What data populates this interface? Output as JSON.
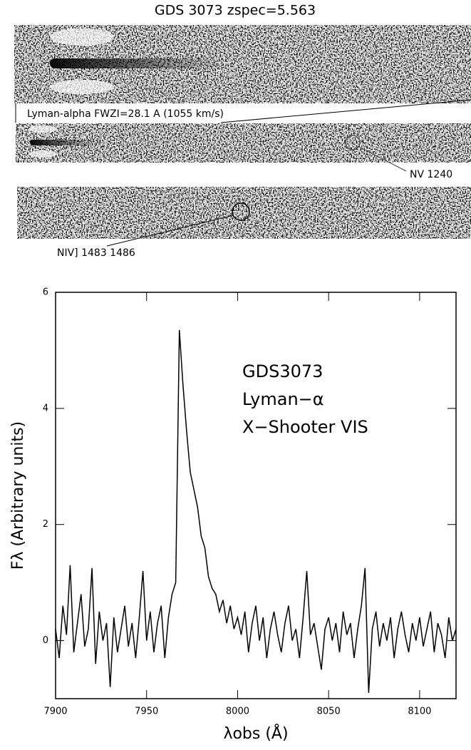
{
  "figure": {
    "title": "GDS 3073 zspec=5.563",
    "lya_label": "Lyman-alpha FWZI=28.1 A (1055 km/s)",
    "nv_label": "NV 1240",
    "niv_label": "NIV] 1483  1486"
  },
  "chart_data": {
    "type": "line",
    "annotations": [
      "GDS3073",
      "Lyman−α",
      "X−Shooter VIS"
    ],
    "x_label": "λobs (Å)",
    "y_label": "Fλ (Arbitrary units)",
    "xlim": [
      7900,
      8120
    ],
    "ylim": [
      -1,
      6
    ],
    "xticks": [
      7900,
      7950,
      8000,
      8050,
      8100
    ],
    "yticks": [
      0,
      2,
      4,
      6
    ],
    "color": "#000000",
    "x": [
      7900,
      7902,
      7904,
      7906,
      7908,
      7910,
      7912,
      7914,
      7916,
      7918,
      7920,
      7922,
      7924,
      7926,
      7928,
      7930,
      7932,
      7934,
      7936,
      7938,
      7940,
      7942,
      7944,
      7946,
      7948,
      7950,
      7952,
      7954,
      7956,
      7958,
      7960,
      7962,
      7964,
      7966,
      7968,
      7970,
      7972,
      7974,
      7976,
      7978,
      7980,
      7982,
      7984,
      7986,
      7988,
      7990,
      7992,
      7994,
      7996,
      7998,
      8000,
      8002,
      8004,
      8006,
      8008,
      8010,
      8012,
      8014,
      8016,
      8018,
      8020,
      8022,
      8024,
      8026,
      8028,
      8030,
      8032,
      8034,
      8036,
      8038,
      8040,
      8042,
      8044,
      8046,
      8048,
      8050,
      8052,
      8054,
      8056,
      8058,
      8060,
      8062,
      8064,
      8066,
      8068,
      8070,
      8072,
      8074,
      8076,
      8078,
      8080,
      8082,
      8084,
      8086,
      8088,
      8090,
      8092,
      8094,
      8096,
      8098,
      8100,
      8102,
      8104,
      8106,
      8108,
      8110,
      8112,
      8114,
      8116,
      8118,
      8120
    ],
    "values": [
      0.2,
      -0.3,
      0.6,
      0.1,
      1.3,
      -0.2,
      0.3,
      0.8,
      -0.1,
      0.2,
      1.25,
      -0.4,
      0.5,
      0.0,
      0.3,
      -0.8,
      0.4,
      -0.2,
      0.2,
      0.6,
      -0.1,
      0.3,
      -0.3,
      0.4,
      1.2,
      0.0,
      0.5,
      -0.2,
      0.3,
      0.6,
      -0.3,
      0.4,
      0.8,
      1.0,
      5.35,
      4.4,
      3.6,
      2.9,
      2.6,
      2.3,
      1.8,
      1.6,
      1.1,
      0.9,
      0.8,
      0.5,
      0.7,
      0.3,
      0.6,
      0.2,
      0.4,
      0.1,
      0.5,
      -0.2,
      0.3,
      0.6,
      0.0,
      0.4,
      -0.3,
      0.2,
      0.5,
      0.1,
      -0.2,
      0.3,
      0.6,
      0.0,
      0.2,
      -0.3,
      0.4,
      1.2,
      0.1,
      0.3,
      -0.1,
      -0.5,
      0.2,
      0.4,
      0.0,
      0.3,
      -0.2,
      0.5,
      0.1,
      0.3,
      -0.3,
      0.2,
      0.6,
      1.25,
      -0.9,
      0.2,
      0.5,
      -0.1,
      0.3,
      0.0,
      0.4,
      -0.3,
      0.2,
      0.5,
      0.1,
      -0.2,
      0.3,
      0.0,
      0.4,
      -0.1,
      0.2,
      0.5,
      -0.2,
      0.3,
      0.1,
      -0.3,
      0.4,
      0.0,
      0.2
    ]
  }
}
